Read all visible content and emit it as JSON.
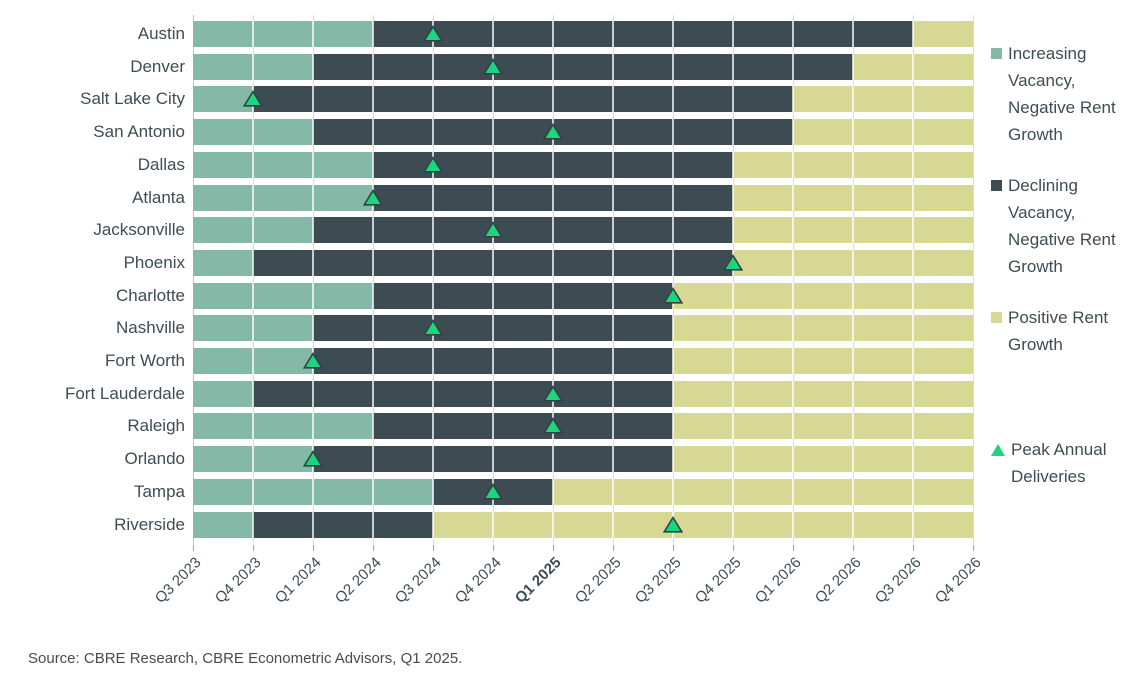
{
  "source_note": "Source: CBRE Research, CBRE Econometric Advisors, Q1 2025.",
  "colors": {
    "increasing_vacancy": "#84B9A7",
    "declining_vacancy": "#3D4B52",
    "positive_rent_growth": "#D6D894",
    "peak_marker_fill": "#1ED47D",
    "peak_marker_outline": "#2F4347",
    "gridline": "#DCDCDC",
    "axis_line": "#C4C4C4",
    "tick": "#A5A5A5",
    "text": "#3E4C54"
  },
  "legend": {
    "items": [
      {
        "label": "Increasing Vacancy, Negative Rent Growth",
        "marker": "square",
        "color_key": "increasing_vacancy"
      },
      {
        "label": "Declining Vacancy, Negative Rent Growth",
        "marker": "square",
        "color_key": "declining_vacancy"
      },
      {
        "label": "Positive Rent Growth",
        "marker": "square",
        "color_key": "positive_rent_growth"
      },
      {
        "label": "Peak Annual Deliveries",
        "marker": "triangle",
        "color_key": "peak_marker_fill"
      }
    ]
  },
  "chart_data": {
    "type": "bar",
    "subtype": "horizontal-stacked-timeline",
    "title": "",
    "xlabel": "",
    "ylabel": "",
    "grid": true,
    "legend_position": "right",
    "x_axis": {
      "labels": [
        "Q3 2023",
        "Q4 2023",
        "Q1 2024",
        "Q2 2024",
        "Q3 2024",
        "Q4 2024",
        "Q1 2025",
        "Q2 2025",
        "Q3 2025",
        "Q4 2025",
        "Q1 2026",
        "Q2 2026",
        "Q3 2026",
        "Q4 2026"
      ],
      "bold_label": "Q1 2025"
    },
    "series": [
      {
        "name": "Increasing Vacancy, Negative Rent Growth",
        "color_key": "increasing_vacancy"
      },
      {
        "name": "Declining Vacancy, Negative Rent Growth",
        "color_key": "declining_vacancy"
      },
      {
        "name": "Positive Rent Growth",
        "color_key": "positive_rent_growth"
      }
    ],
    "rows": [
      {
        "city": "Austin",
        "increasing_vacancy_from": "Q3 2023",
        "declining_vacancy_from": "Q2 2024",
        "positive_rent_growth_from": "Q3 2026",
        "peak_annual_deliveries": "Q3 2024"
      },
      {
        "city": "Denver",
        "increasing_vacancy_from": "Q3 2023",
        "declining_vacancy_from": "Q1 2024",
        "positive_rent_growth_from": "Q2 2026",
        "peak_annual_deliveries": "Q4 2024"
      },
      {
        "city": "Salt Lake City",
        "increasing_vacancy_from": "Q3 2023",
        "declining_vacancy_from": "Q4 2023",
        "positive_rent_growth_from": "Q1 2026",
        "peak_annual_deliveries": "Q4 2023"
      },
      {
        "city": "San Antonio",
        "increasing_vacancy_from": "Q3 2023",
        "declining_vacancy_from": "Q1 2024",
        "positive_rent_growth_from": "Q1 2026",
        "peak_annual_deliveries": "Q1 2025"
      },
      {
        "city": "Dallas",
        "increasing_vacancy_from": "Q3 2023",
        "declining_vacancy_from": "Q2 2024",
        "positive_rent_growth_from": "Q4 2025",
        "peak_annual_deliveries": "Q3 2024"
      },
      {
        "city": "Atlanta",
        "increasing_vacancy_from": "Q3 2023",
        "declining_vacancy_from": "Q2 2024",
        "positive_rent_growth_from": "Q4 2025",
        "peak_annual_deliveries": "Q2 2024"
      },
      {
        "city": "Jacksonville",
        "increasing_vacancy_from": "Q3 2023",
        "declining_vacancy_from": "Q1 2024",
        "positive_rent_growth_from": "Q4 2025",
        "peak_annual_deliveries": "Q4 2024"
      },
      {
        "city": "Phoenix",
        "increasing_vacancy_from": "Q3 2023",
        "declining_vacancy_from": "Q4 2023",
        "positive_rent_growth_from": "Q4 2025",
        "peak_annual_deliveries": "Q4 2025"
      },
      {
        "city": "Charlotte",
        "increasing_vacancy_from": "Q3 2023",
        "declining_vacancy_from": "Q2 2024",
        "positive_rent_growth_from": "Q3 2025",
        "peak_annual_deliveries": "Q3 2025"
      },
      {
        "city": "Nashville",
        "increasing_vacancy_from": "Q3 2023",
        "declining_vacancy_from": "Q1 2024",
        "positive_rent_growth_from": "Q3 2025",
        "peak_annual_deliveries": "Q3 2024"
      },
      {
        "city": "Fort Worth",
        "increasing_vacancy_from": "Q3 2023",
        "declining_vacancy_from": "Q1 2024",
        "positive_rent_growth_from": "Q3 2025",
        "peak_annual_deliveries": "Q1 2024"
      },
      {
        "city": "Fort Lauderdale",
        "increasing_vacancy_from": "Q3 2023",
        "declining_vacancy_from": "Q4 2023",
        "positive_rent_growth_from": "Q3 2025",
        "peak_annual_deliveries": "Q1 2025"
      },
      {
        "city": "Raleigh",
        "increasing_vacancy_from": "Q3 2023",
        "declining_vacancy_from": "Q2 2024",
        "positive_rent_growth_from": "Q3 2025",
        "peak_annual_deliveries": "Q1 2025"
      },
      {
        "city": "Orlando",
        "increasing_vacancy_from": "Q3 2023",
        "declining_vacancy_from": "Q1 2024",
        "positive_rent_growth_from": "Q3 2025",
        "peak_annual_deliveries": "Q1 2024"
      },
      {
        "city": "Tampa",
        "increasing_vacancy_from": "Q3 2023",
        "declining_vacancy_from": "Q3 2024",
        "positive_rent_growth_from": "Q1 2025",
        "peak_annual_deliveries": "Q4 2024"
      },
      {
        "city": "Riverside",
        "increasing_vacancy_from": "Q3 2023",
        "declining_vacancy_from": "Q4 2023",
        "positive_rent_growth_from": "Q3 2024",
        "peak_annual_deliveries": "Q3 2025"
      }
    ]
  }
}
